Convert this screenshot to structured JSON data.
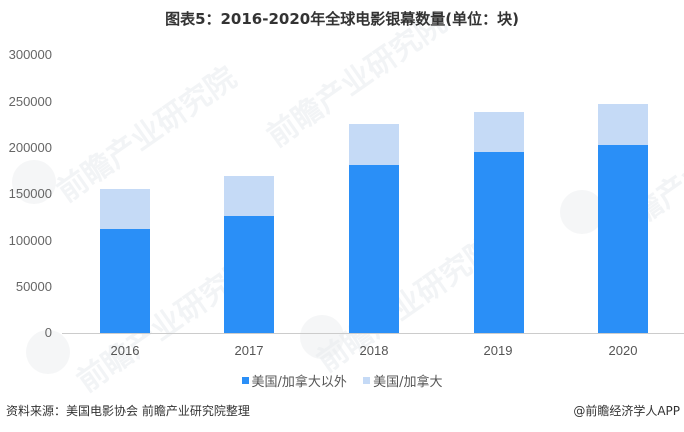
{
  "title": "图表5：2016-2020年全球电影银幕数量(单位：块)",
  "colors": {
    "outside_us_canada": "#2a8ff7",
    "us_canada": "#c5daf6",
    "axis_text": "#666666",
    "baseline": "#cccccc"
  },
  "y_axis": {
    "ticks": [
      "300000",
      "250000",
      "200000",
      "150000",
      "100000",
      "50000",
      "0"
    ]
  },
  "x_axis": {
    "ticks": [
      "2016",
      "2017",
      "2018",
      "2019",
      "2020"
    ]
  },
  "legend": {
    "items": [
      {
        "label": "美国/加拿大以外",
        "color": "#2a8ff7"
      },
      {
        "label": "美国/加拿大",
        "color": "#c5daf6"
      }
    ]
  },
  "footer": {
    "source": "资料来源：美国电影协会 前瞻产业研究院整理",
    "credit": "@前瞻经济学人APP"
  },
  "watermark": "前瞻产业研究院",
  "chart_data": {
    "type": "bar",
    "stacked": true,
    "title": "图表5：2016-2020年全球电影银幕数量(单位：块)",
    "xlabel": "",
    "ylabel": "",
    "ylim": [
      0,
      300000
    ],
    "yticks": [
      0,
      50000,
      100000,
      150000,
      200000,
      250000,
      300000
    ],
    "categories": [
      "2016",
      "2017",
      "2018",
      "2019",
      "2020"
    ],
    "series": [
      {
        "name": "美国/加拿大以外",
        "color": "#2a8ff7",
        "values": [
          112300,
          126400,
          181400,
          195500,
          203000
        ]
      },
      {
        "name": "美国/加拿大",
        "color": "#c5daf6",
        "values": [
          43200,
          43200,
          44300,
          43200,
          44300
        ]
      }
    ],
    "totals": [
      155500,
      169600,
      225700,
      238700,
      247300
    ],
    "legend_position": "bottom",
    "grid": false
  }
}
